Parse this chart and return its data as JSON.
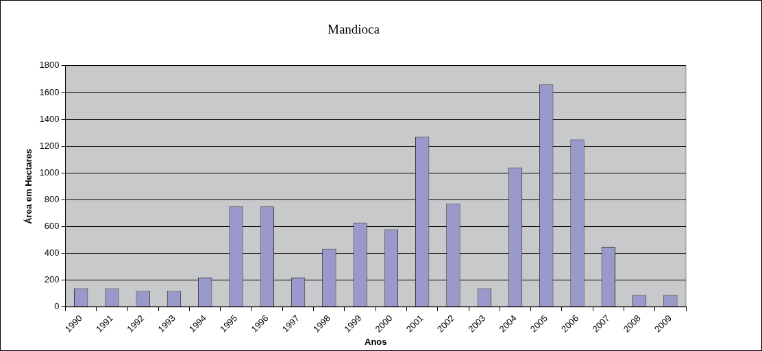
{
  "chart_data": {
    "type": "bar",
    "title": "Mandioca",
    "xlabel": "Anos",
    "ylabel": "Área em Hectares",
    "categories": [
      "1990",
      "1991",
      "1992",
      "1993",
      "1994",
      "1995",
      "1996",
      "1997",
      "1998",
      "1999",
      "2000",
      "2001",
      "2002",
      "2003",
      "2004",
      "2005",
      "2006",
      "2007",
      "2008",
      "2009"
    ],
    "values": [
      140,
      140,
      120,
      120,
      220,
      750,
      750,
      220,
      435,
      630,
      580,
      1270,
      770,
      140,
      1040,
      1660,
      1250,
      450,
      90,
      90
    ],
    "color": "#9999cc",
    "ylim": [
      0,
      1800
    ],
    "yticks": [
      0,
      200,
      400,
      600,
      800,
      1000,
      1200,
      1400,
      1600,
      1800
    ],
    "grid": "y",
    "legend": false
  }
}
